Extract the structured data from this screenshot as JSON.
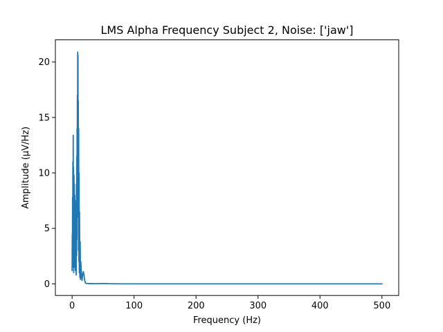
{
  "chart_data": {
    "type": "line",
    "title": "LMS Alpha Frequency Subject 2, Noise: ['jaw']",
    "xlabel": "Frequency (Hz)",
    "ylabel": "Amplitude (μV/Hz)",
    "xlim": [
      -27,
      527
    ],
    "ylim": [
      -1.05,
      22.0
    ],
    "xticks": [
      0,
      100,
      200,
      300,
      400,
      500
    ],
    "xtick_labels": [
      "0",
      "100",
      "200",
      "300",
      "400",
      "500"
    ],
    "yticks": [
      0,
      5,
      10,
      15,
      20
    ],
    "ytick_labels": [
      "0",
      "5",
      "10",
      "15",
      "20"
    ],
    "grid": false,
    "series": [
      {
        "name": "amplitude",
        "color": "#1f77b4",
        "x": [
          0,
          0.3,
          0.5,
          0.7,
          1.0,
          1.2,
          1.5,
          1.8,
          2.0,
          2.3,
          2.6,
          3.0,
          3.3,
          3.6,
          4.0,
          4.3,
          4.6,
          5.0,
          5.3,
          5.6,
          6.0,
          6.3,
          6.6,
          7.0,
          7.3,
          7.6,
          7.8,
          8.0,
          8.2,
          8.5,
          8.8,
          9.0,
          9.2,
          9.5,
          9.8,
          10.0,
          10.3,
          10.6,
          11.0,
          11.3,
          11.6,
          12.0,
          12.5,
          13.0,
          13.5,
          14.0,
          15.0,
          16.0,
          17.0,
          18.0,
          19.0,
          20.0,
          21.0,
          22.0,
          24.0,
          26.0,
          30.0,
          40.0,
          50.0,
          60.0,
          80.0,
          100.0,
          200.0,
          300.0,
          400.0,
          500.0
        ],
        "values": [
          1.2,
          4.5,
          2.0,
          7.8,
          3.5,
          11.0,
          1.5,
          13.4,
          2.5,
          10.5,
          1.0,
          9.8,
          2.0,
          9.0,
          1.5,
          8.0,
          3.0,
          7.5,
          1.2,
          6.5,
          2.0,
          5.0,
          0.8,
          9.0,
          2.5,
          11.5,
          4.0,
          14.0,
          6.0,
          17.0,
          8.0,
          20.9,
          12.0,
          20.6,
          6.0,
          16.5,
          3.0,
          14.0,
          2.0,
          10.0,
          1.0,
          6.5,
          0.6,
          3.8,
          0.4,
          2.0,
          1.0,
          0.3,
          0.8,
          1.1,
          0.9,
          0.4,
          0.15,
          0.05,
          0.03,
          0.02,
          0.02,
          0.01,
          0.03,
          0.01,
          0.0,
          0.0,
          0.0,
          0.0,
          0.0,
          0.0
        ]
      }
    ]
  }
}
